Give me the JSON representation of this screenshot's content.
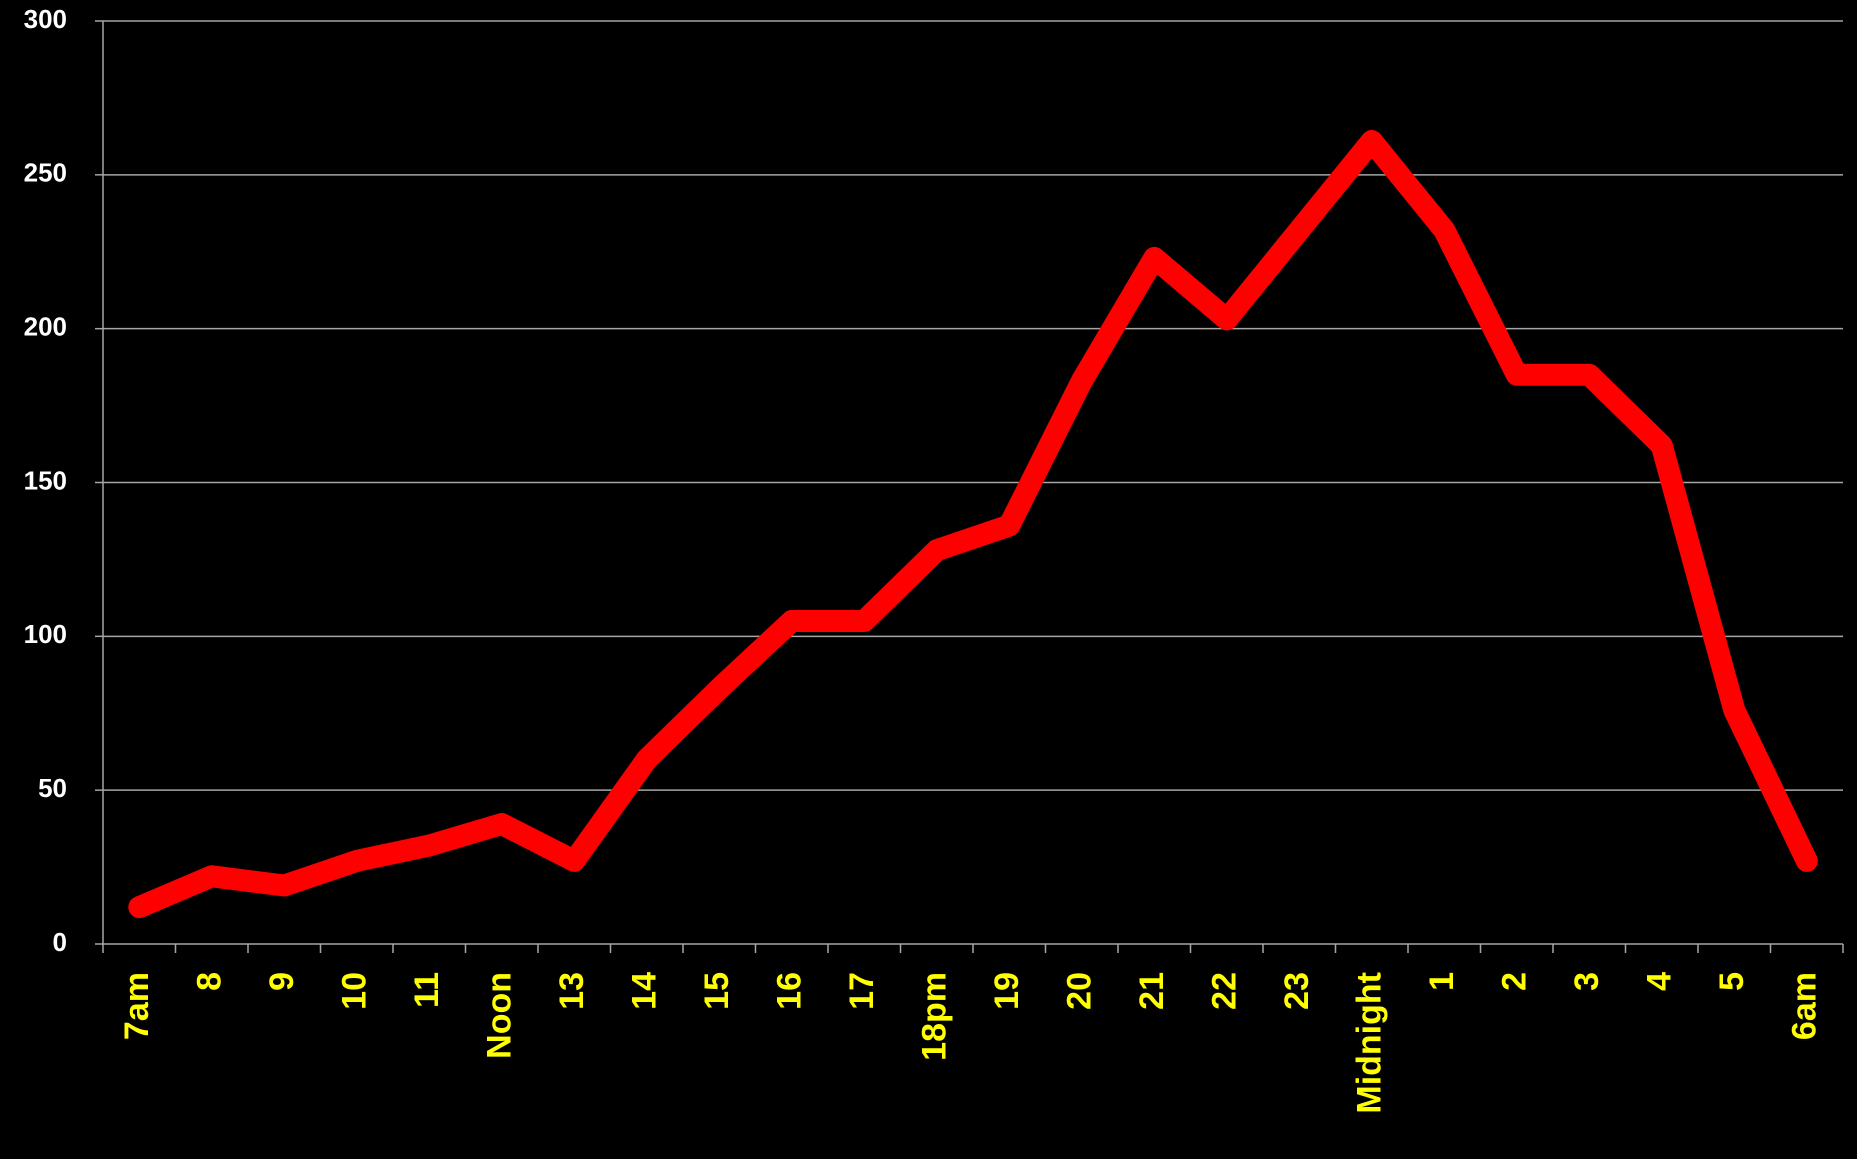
{
  "chart_data": {
    "type": "line",
    "title": "",
    "xlabel": "",
    "ylabel": "",
    "categories": [
      "7am",
      "8",
      "9",
      "10",
      "11",
      "Noon",
      "13",
      "14",
      "15",
      "16",
      "17",
      "18pm",
      "19",
      "20",
      "21",
      "22",
      "23",
      "Midnight",
      "1",
      "2",
      "3",
      "4",
      "5",
      "6am"
    ],
    "series": [
      {
        "values": [
          12,
          22,
          19,
          27,
          32,
          39,
          27,
          60,
          83,
          105,
          105,
          128,
          136,
          183,
          223,
          203,
          232,
          261,
          232,
          185,
          185,
          162,
          76,
          27
        ],
        "color": "#ff0000"
      }
    ],
    "ylim": [
      0,
      300
    ],
    "yticks": [
      "0",
      "50",
      "100",
      "150",
      "200",
      "250",
      "300"
    ],
    "grid": true,
    "legend": "none",
    "colors": {
      "background": "#000000",
      "line": "#ff0000",
      "grid": "#a6a6a6",
      "ytick_text": "#ffffff",
      "xtick_text": "#ffff00"
    }
  }
}
